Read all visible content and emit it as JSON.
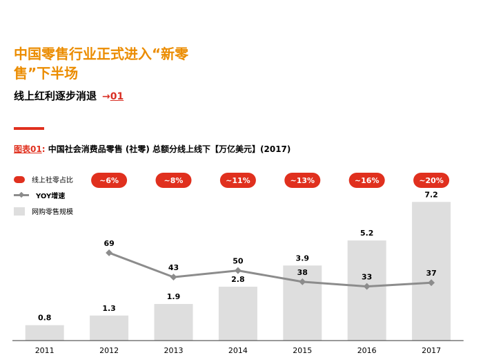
{
  "header": {
    "title": "中国零售行业正式进入“新零售”下半场",
    "subtitle": "线上红利逐步消退",
    "subtitle_ref_arrow": "→",
    "subtitle_ref": "01"
  },
  "figure": {
    "label": "图表01",
    "colon": ":",
    "title": " 中国社会消费品零售 (社零) 总额分线上线下【万亿美元】(2017)"
  },
  "legend": {
    "share": "线上社零占比",
    "yoy": "YOY增速",
    "scale": "网购零售规模"
  },
  "colors": {
    "accent": "#e0301e",
    "title_orange": "#eb8c00",
    "bar": "#dedede",
    "line": "#8c8c8c"
  },
  "chart_data": {
    "type": "bar",
    "title": "中国社会消费品零售 (社零) 总额分线上线下【万亿美元】(2017)",
    "categories": [
      "2011",
      "2012",
      "2013",
      "2014",
      "2015",
      "2016",
      "2017"
    ],
    "series": [
      {
        "name": "网购零售规模",
        "type": "bar",
        "values": [
          0.8,
          1.3,
          1.9,
          2.8,
          3.9,
          5.2,
          7.2
        ],
        "labels": [
          "0.8",
          "1.3",
          "1.9",
          "2.8",
          "3.9",
          "5.2",
          "7.2"
        ]
      },
      {
        "name": "YOY增速",
        "type": "line",
        "x": [
          "2012",
          "2013",
          "2014",
          "2015",
          "2016",
          "2017"
        ],
        "values": [
          69,
          43,
          50,
          38,
          33,
          37
        ],
        "labels": [
          "69",
          "43",
          "50",
          "38",
          "33",
          "37"
        ]
      }
    ],
    "share_badges": {
      "x": [
        "2012",
        "2013",
        "2014",
        "2015",
        "2016",
        "2017"
      ],
      "labels": [
        "~6%",
        "~8%",
        "~11%",
        "~13%",
        "~16%",
        "~20%"
      ]
    },
    "bar_ylim": [
      0,
      8
    ],
    "line_ylim": [
      -25,
      140
    ],
    "xlabel": "",
    "ylabel": "",
    "grid": false
  }
}
